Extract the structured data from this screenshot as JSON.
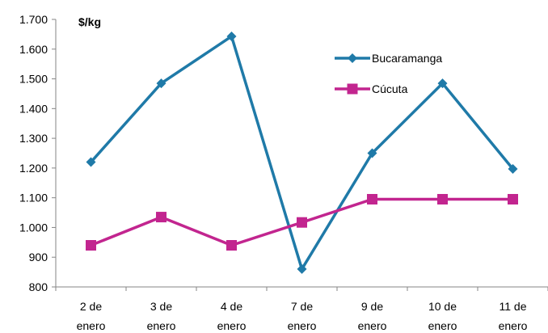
{
  "chart_data": {
    "type": "line",
    "title": "",
    "xlabel": "",
    "ylabel": "$/kg",
    "categories": [
      [
        "2 de",
        "enero"
      ],
      [
        "3 de",
        "enero"
      ],
      [
        "4 de",
        "enero"
      ],
      [
        "7 de",
        "enero"
      ],
      [
        "9 de",
        "enero"
      ],
      [
        "10 de",
        "enero"
      ],
      [
        "11 de",
        "enero"
      ]
    ],
    "ylim": [
      800,
      1700
    ],
    "y_ticks": [
      800,
      900,
      1000,
      1100,
      1200,
      1300,
      1400,
      1500,
      1600,
      1700
    ],
    "y_tick_labels": [
      "800",
      "900",
      "1.000",
      "1.100",
      "1.200",
      "1.300",
      "1.400",
      "1.500",
      "1.600",
      "1.700"
    ],
    "grid": false,
    "legend_position": "top-right",
    "series": [
      {
        "name": "Bucaramanga",
        "color": "#1f7aa8",
        "marker": "diamond",
        "values": [
          1220,
          1485,
          1643,
          860,
          1250,
          1485,
          1197
        ]
      },
      {
        "name": "Cúcuta",
        "color": "#c2258f",
        "marker": "square",
        "values": [
          940,
          1035,
          940,
          1017,
          1095,
          1095,
          1095
        ]
      }
    ]
  }
}
